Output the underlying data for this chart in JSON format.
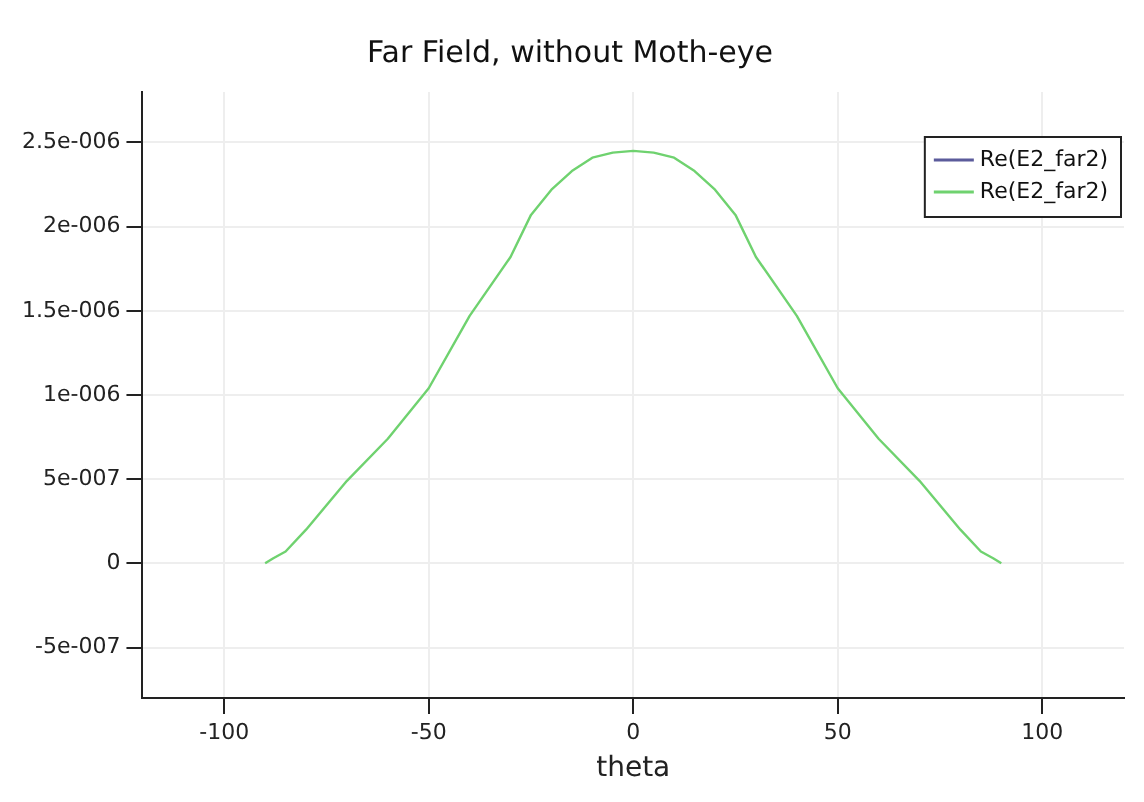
{
  "chart_data": {
    "type": "line",
    "title": "Far Field, without Moth-eye",
    "xlabel": "theta",
    "x": [
      -90,
      -88,
      -85,
      -80,
      -70,
      -60,
      -50,
      -40,
      -30,
      -25,
      -20,
      -15,
      -10,
      -5,
      0,
      5,
      10,
      15,
      20,
      25,
      30,
      40,
      50,
      60,
      70,
      80,
      85,
      88,
      90
    ],
    "series": [
      {
        "name": "Re(E2_far2)",
        "color": "#5b5b9b",
        "values": [
          null,
          null,
          null,
          null,
          null,
          null,
          null,
          null,
          null,
          null,
          null,
          null,
          null,
          null,
          null,
          null,
          null,
          null,
          null,
          null,
          null,
          null,
          null,
          null,
          null,
          null,
          null,
          null,
          null
        ]
      },
      {
        "name": "Re(E2_far2)",
        "color": "#6fd26f",
        "values": [
          0,
          3e-08,
          7e-08,
          2e-07,
          4.9e-07,
          7.4e-07,
          1.04e-06,
          1.47e-06,
          1.82e-06,
          2.07e-06,
          2.22e-06,
          2.33e-06,
          2.41e-06,
          2.44e-06,
          2.45e-06,
          2.44e-06,
          2.41e-06,
          2.33e-06,
          2.22e-06,
          2.07e-06,
          1.82e-06,
          1.47e-06,
          1.04e-06,
          7.4e-07,
          4.9e-07,
          2e-07,
          7e-08,
          3e-08,
          0
        ]
      }
    ],
    "xlim": [
      -120,
      120
    ],
    "xticks": [
      -100,
      -50,
      0,
      50,
      100
    ],
    "ylim": [
      -8e-07,
      2.8e-06
    ],
    "yticks": [
      {
        "value": -5e-07,
        "label": "-5e-007"
      },
      0,
      {
        "value": 5e-07,
        "label": "5e-007"
      },
      {
        "value": 1e-06,
        "label": "1e-006"
      },
      {
        "value": 1.5e-06,
        "label": "1.5e-006"
      },
      {
        "value": 2e-06,
        "label": "2e-006"
      },
      {
        "value": 2.5e-06,
        "label": "2.5e-006"
      }
    ],
    "grid": true,
    "legend": "top right",
    "marker": "none",
    "line_style": "solid"
  }
}
